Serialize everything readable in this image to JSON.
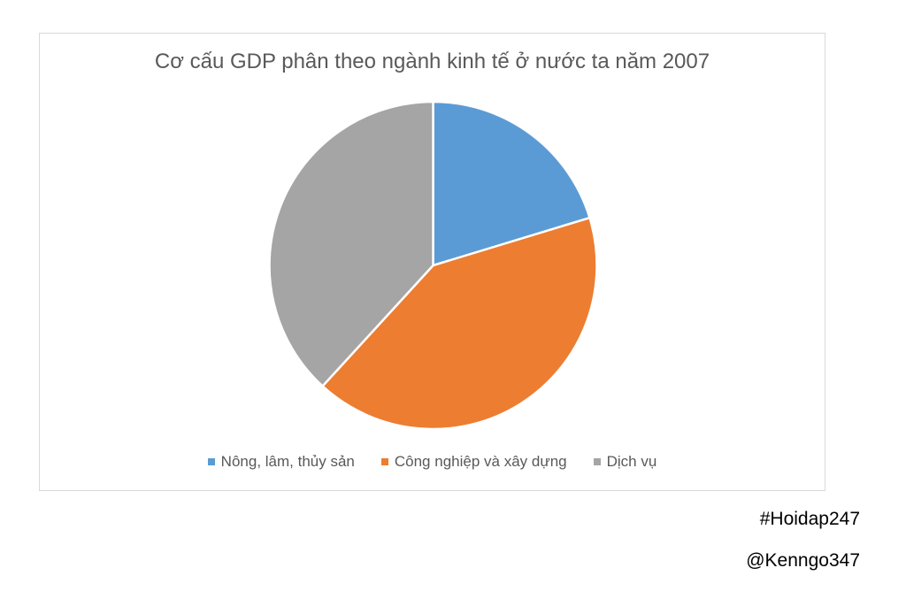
{
  "chart_data": {
    "type": "pie",
    "title": "Cơ cấu GDP phân theo ngành kinh tế ở nước ta năm 2007",
    "categories": [
      "Nông, lâm, thủy sản",
      "Công nghiệp và xây dựng",
      "Dịch vụ"
    ],
    "values": [
      20.3,
      41.5,
      38.2
    ],
    "colors": [
      "#5b9bd5",
      "#ed7d31",
      "#a5a5a5"
    ],
    "legend_position": "bottom",
    "start_angle_deg": 0,
    "direction": "clockwise"
  },
  "watermark": {
    "hashtag": "#Hoidap247",
    "author": "@Kenngo347"
  }
}
